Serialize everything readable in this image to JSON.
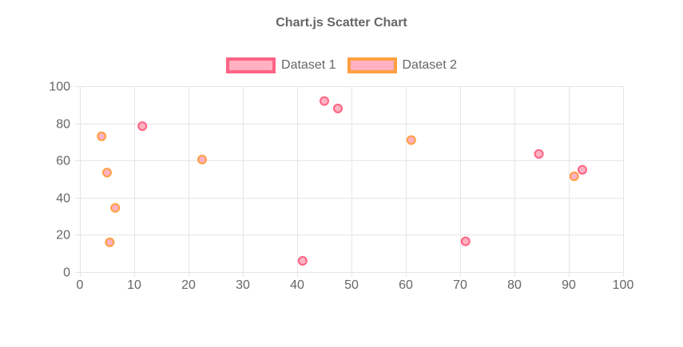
{
  "page": {
    "background_color": "#ffffff"
  },
  "chart": {
    "title_color": "#666666",
    "axis_text_color": "#666666",
    "grid_color": "#e5e5e5"
  },
  "chart_data": {
    "type": "scatter",
    "title": "Chart.js Scatter Chart",
    "xlabel": "",
    "ylabel": "",
    "xlim": [
      0,
      100
    ],
    "ylim": [
      0,
      100
    ],
    "x_ticks": [
      0,
      10,
      20,
      30,
      40,
      50,
      60,
      70,
      80,
      90,
      100
    ],
    "y_ticks": [
      0,
      20,
      40,
      60,
      80,
      100
    ],
    "grid": true,
    "legend_position": "top",
    "series": [
      {
        "name": "Dataset 1",
        "border_color": "#ff6384",
        "fill_color": "#ffb1c1",
        "points": [
          [
            11.5,
            78.5
          ],
          [
            41,
            6
          ],
          [
            45,
            92
          ],
          [
            47.5,
            88
          ],
          [
            71,
            16.5
          ],
          [
            84.5,
            63.5
          ],
          [
            92.5,
            55
          ]
        ]
      },
      {
        "name": "Dataset 2",
        "border_color": "#ff9f40",
        "fill_color": "#ffb1c1",
        "points": [
          [
            4,
            73
          ],
          [
            5,
            53.5
          ],
          [
            5.5,
            16
          ],
          [
            6.5,
            34.5
          ],
          [
            22.5,
            60.5
          ],
          [
            61,
            71
          ],
          [
            91,
            51.5
          ]
        ]
      }
    ]
  }
}
